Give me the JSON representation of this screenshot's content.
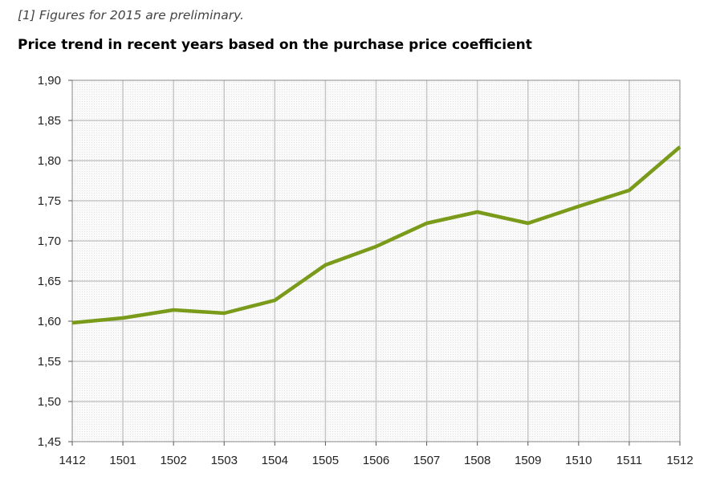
{
  "footnote": "[1] Figures for 2015 are preliminary.",
  "title": "Price trend in recent years based on the purchase price coefficient",
  "chart_data": {
    "type": "line",
    "categories": [
      "1412",
      "1501",
      "1502",
      "1503",
      "1504",
      "1505",
      "1506",
      "1507",
      "1508",
      "1509",
      "1510",
      "1511",
      "1512"
    ],
    "series": [
      {
        "values": [
          1.598,
          1.604,
          1.614,
          1.61,
          1.626,
          1.67,
          1.693,
          1.722,
          1.736,
          1.722,
          1.743,
          1.763,
          1.817
        ],
        "color": "#7a9a1a"
      }
    ],
    "yticks": [
      "1,45",
      "1,50",
      "1,55",
      "1,60",
      "1,65",
      "1,70",
      "1,75",
      "1,80",
      "1,85",
      "1,90"
    ],
    "ylim": [
      1.45,
      1.9
    ],
    "grid": true,
    "legend": "none"
  }
}
